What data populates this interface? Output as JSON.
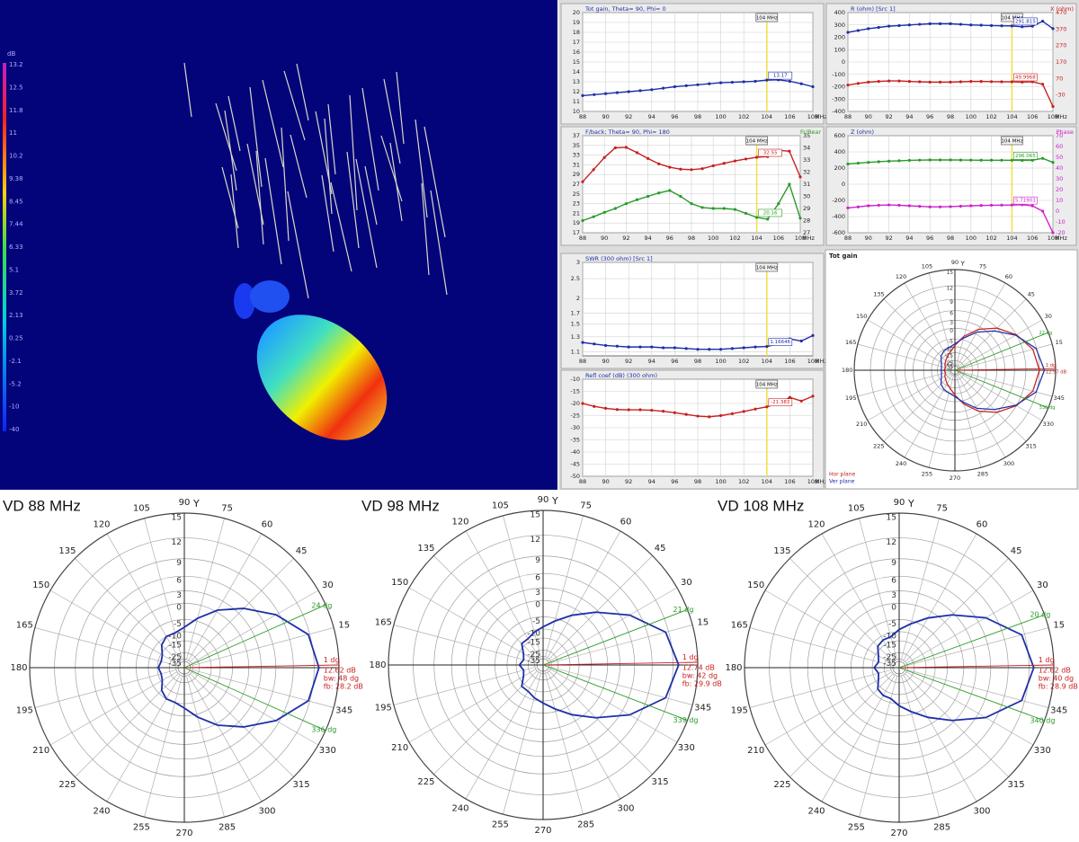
{
  "chart_data": [
    {
      "type": "colorbar",
      "unit": "dB",
      "ticks": [
        13.2,
        12.5,
        11.8,
        11,
        10.2,
        9.38,
        8.45,
        7.44,
        6.33,
        5.1,
        3.72,
        2.13,
        0.25,
        -2.1,
        -5.2,
        -10,
        -40
      ]
    },
    {
      "type": "line",
      "title": "Tot gain, Theta= 90, Phi= 0",
      "x": [
        88,
        89,
        90,
        91,
        92,
        93,
        94,
        95,
        96,
        97,
        98,
        99,
        100,
        101,
        102,
        103,
        104,
        105,
        106,
        107,
        108
      ],
      "xlim": [
        88,
        108
      ],
      "xticks": [
        88,
        90,
        92,
        94,
        96,
        98,
        100,
        102,
        104,
        106,
        108
      ],
      "x_unit": "MHz",
      "ylim": [
        10,
        20
      ],
      "yticks": [
        10,
        11,
        12,
        13,
        14,
        15,
        16,
        17,
        18,
        19,
        20
      ],
      "grid": true,
      "marker": {
        "x": 104,
        "label": "104 MHz"
      },
      "series": [
        {
          "color": "#1f2fa8",
          "marker_label": "13.17",
          "values": [
            11.6,
            11.7,
            11.8,
            11.9,
            12.0,
            12.1,
            12.2,
            12.35,
            12.5,
            12.6,
            12.7,
            12.8,
            12.9,
            12.95,
            13.0,
            13.05,
            13.17,
            13.2,
            13.05,
            12.8,
            12.5
          ]
        }
      ]
    },
    {
      "type": "line",
      "title": "R (ohm) [Src 1]",
      "y2_title": "X (ohm)",
      "x": [
        88,
        89,
        90,
        91,
        92,
        93,
        94,
        95,
        96,
        97,
        98,
        99,
        100,
        101,
        102,
        103,
        104,
        105,
        106,
        107,
        108
      ],
      "xlim": [
        88,
        108
      ],
      "xticks": [
        88,
        90,
        92,
        94,
        96,
        98,
        100,
        102,
        104,
        106,
        108
      ],
      "x_unit": "MHz",
      "ylim": [
        -400,
        400
      ],
      "yticks": [
        -400,
        -300,
        -200,
        -100,
        0,
        100,
        200,
        300,
        400
      ],
      "y2lim": [
        -130,
        470
      ],
      "y2ticks": [
        -30,
        70,
        170,
        270,
        370,
        470
      ],
      "grid": true,
      "marker": {
        "x": 104,
        "label": "104 MHz"
      },
      "series": [
        {
          "color": "#1f2fa8",
          "marker_label": "291.815",
          "values": [
            240,
            255,
            270,
            280,
            290,
            295,
            300,
            305,
            310,
            310,
            310,
            305,
            300,
            298,
            295,
            293,
            291.815,
            285,
            290,
            330,
            270
          ]
        },
        {
          "color": "#c82020",
          "axis": "y2",
          "marker_label": "49.9968",
          "values": [
            30,
            40,
            48,
            52,
            55,
            55,
            52,
            50,
            48,
            48,
            48,
            50,
            52,
            52,
            51,
            50,
            49.9968,
            48,
            50,
            35,
            -100
          ]
        }
      ]
    },
    {
      "type": "line",
      "title": "F/back; Theta= 90, Phi= 180",
      "y2_title": "Fr/Rear",
      "x": [
        88,
        89,
        90,
        91,
        92,
        93,
        94,
        95,
        96,
        97,
        98,
        99,
        100,
        101,
        102,
        103,
        104,
        105,
        106,
        107,
        108
      ],
      "xlim": [
        88,
        108
      ],
      "xticks": [
        88,
        90,
        92,
        94,
        96,
        98,
        100,
        102,
        104,
        106,
        108
      ],
      "x_unit": "MHz",
      "ylim": [
        17,
        37
      ],
      "yticks": [
        17,
        19,
        21,
        23,
        25,
        27,
        29,
        31,
        33,
        35,
        37
      ],
      "y2lim": [
        27,
        35
      ],
      "y2ticks": [
        27,
        28,
        29,
        30,
        31,
        32,
        33,
        34,
        35
      ],
      "grid": true,
      "marker": {
        "x": 104,
        "label": "104 MHz"
      },
      "series": [
        {
          "color": "#c82020",
          "marker_label": "32.55",
          "values": [
            27.5,
            30,
            32.5,
            34.5,
            34.6,
            33.5,
            32.3,
            31.2,
            30.5,
            30.1,
            30,
            30.2,
            30.8,
            31.3,
            31.8,
            32.2,
            32.55,
            32.7,
            34,
            33.8,
            28.5
          ]
        },
        {
          "color": "#2a9a2a",
          "marker_label": "20.16",
          "values": [
            19.5,
            20.3,
            21.2,
            22,
            23,
            23.8,
            24.5,
            25.2,
            25.7,
            24.5,
            23,
            22.2,
            22,
            22,
            21.8,
            21,
            20.16,
            19.8,
            23,
            27,
            20
          ]
        }
      ]
    },
    {
      "type": "line",
      "title": "Z (ohm)",
      "y2_title": "Phase",
      "x": [
        88,
        89,
        90,
        91,
        92,
        93,
        94,
        95,
        96,
        97,
        98,
        99,
        100,
        101,
        102,
        103,
        104,
        105,
        106,
        107,
        108
      ],
      "xlim": [
        88,
        108
      ],
      "xticks": [
        88,
        90,
        92,
        94,
        96,
        98,
        100,
        102,
        104,
        106,
        108
      ],
      "x_unit": "MHz",
      "ylim": [
        -600,
        600
      ],
      "yticks": [
        -600,
        -400,
        -200,
        0,
        200,
        400,
        600
      ],
      "y2lim": [
        -20,
        70
      ],
      "y2ticks": [
        -20,
        -10,
        0,
        10,
        20,
        30,
        40,
        50,
        60,
        70
      ],
      "grid": true,
      "marker": {
        "x": 104,
        "label": "104 MHz"
      },
      "series": [
        {
          "color": "#2a9a2a",
          "marker_label": "296.065",
          "values": [
            250,
            260,
            270,
            278,
            285,
            290,
            295,
            298,
            300,
            300,
            300,
            299,
            298,
            297,
            297,
            296.5,
            296.065,
            295,
            296,
            320,
            270
          ]
        },
        {
          "color": "#cc22cc",
          "axis": "y2",
          "marker_label": "5.71903",
          "values": [
            3,
            4,
            5,
            5.5,
            5.8,
            5.5,
            5,
            4.5,
            4,
            4,
            4.2,
            4.6,
            5,
            5.3,
            5.5,
            5.6,
            5.71903,
            6,
            5,
            0,
            -20
          ]
        }
      ]
    },
    {
      "type": "line",
      "title": "SWR (300 ohm) [Src 1]",
      "x": [
        88,
        89,
        90,
        91,
        92,
        93,
        94,
        95,
        96,
        97,
        98,
        99,
        100,
        101,
        102,
        103,
        104,
        105,
        106,
        107,
        108
      ],
      "xlim": [
        88,
        108
      ],
      "xticks": [
        88,
        90,
        92,
        94,
        96,
        98,
        100,
        102,
        104,
        106,
        108
      ],
      "x_unit": "MHz",
      "log_scale": true,
      "ylim": [
        1.05,
        3
      ],
      "yticks": [
        1.1,
        1.3,
        1.5,
        1.7,
        2,
        2.5,
        3
      ],
      "grid": true,
      "marker": {
        "x": 104,
        "label": "104 MHz"
      },
      "series": [
        {
          "color": "#1f2fa8",
          "marker_label": "1.16646",
          "values": [
            1.22,
            1.2,
            1.18,
            1.17,
            1.16,
            1.16,
            1.16,
            1.15,
            1.15,
            1.14,
            1.13,
            1.13,
            1.13,
            1.14,
            1.15,
            1.16,
            1.16646,
            1.2,
            1.27,
            1.24,
            1.32
          ]
        }
      ]
    },
    {
      "type": "line",
      "title": "Refl coef (dB) (300 ohm)",
      "x": [
        88,
        89,
        90,
        91,
        92,
        93,
        94,
        95,
        96,
        97,
        98,
        99,
        100,
        101,
        102,
        103,
        104,
        105,
        106,
        107,
        108
      ],
      "xlim": [
        88,
        108
      ],
      "xticks": [
        88,
        90,
        92,
        94,
        96,
        98,
        100,
        102,
        104,
        106,
        108
      ],
      "x_unit": "MHz",
      "ylim": [
        -50,
        -10
      ],
      "yticks": [
        -50,
        -45,
        -40,
        -35,
        -30,
        -25,
        -20,
        -15,
        -10
      ],
      "grid": true,
      "marker": {
        "x": 104,
        "label": "104 MHz"
      },
      "series": [
        {
          "color": "#c82020",
          "marker_label": "-21.383",
          "values": [
            -20,
            -21.2,
            -22,
            -22.5,
            -22.6,
            -22.6,
            -22.8,
            -23.2,
            -23.8,
            -24.5,
            -25.2,
            -25.5,
            -25,
            -24.2,
            -23.3,
            -22.3,
            -21.383,
            -20,
            -17.5,
            -19,
            -17
          ]
        }
      ]
    },
    {
      "type": "polar",
      "title": "Tot gain",
      "axis_label": "Y",
      "rlim": [
        -40,
        15
      ],
      "rticks": [
        15,
        12,
        9,
        6,
        3,
        0,
        -5,
        -10,
        -15,
        -25,
        -35
      ],
      "angle_ticks": [
        15,
        30,
        45,
        60,
        75,
        90,
        105,
        120,
        135,
        150,
        165,
        180,
        195,
        210,
        225,
        240,
        255,
        270,
        285,
        300,
        315,
        330,
        345
      ],
      "angles": [
        0,
        15,
        30,
        45,
        60,
        75,
        90,
        105,
        120,
        135,
        150,
        165,
        180,
        195,
        210,
        225,
        240,
        255,
        270,
        285,
        300,
        315,
        330,
        345
      ],
      "series": [
        {
          "name": "Hor plane",
          "color": "#c82020",
          "values": [
            12,
            11.2,
            9,
            6,
            2,
            -3,
            -9,
            -14,
            -17,
            -20,
            -22,
            -25,
            -23,
            -25,
            -22,
            -20,
            -17,
            -14,
            -9,
            -3,
            2,
            6,
            9,
            11.2
          ]
        },
        {
          "name": "Ver plane",
          "color": "#1f2fa8",
          "values": [
            12.97,
            11.9,
            8.8,
            4.8,
            0.8,
            -4,
            -8,
            -10,
            -11,
            -13,
            -17,
            -19,
            -19.4,
            -19,
            -17,
            -13,
            -11,
            -10,
            -8,
            -4,
            0.8,
            4.8,
            8.8,
            11.9
          ]
        }
      ],
      "markers": [
        {
          "angle": 1,
          "label": "1 dg",
          "color": "#c82020"
        },
        {
          "angle": 22,
          "label": "22 dg",
          "color": "#2a9a2a"
        },
        {
          "angle": 338,
          "label": "338 dg",
          "color": "#2a9a2a"
        }
      ],
      "annotations": [
        "12.97 dB"
      ]
    },
    {
      "type": "polar",
      "title": "VD 88 MHz",
      "axis_label": "Y",
      "rlim": [
        -40,
        15
      ],
      "rticks": [
        15,
        12,
        9,
        6,
        3,
        0,
        -5,
        -10,
        -15,
        -25,
        -35
      ],
      "angle_ticks": [
        15,
        30,
        45,
        60,
        75,
        90,
        105,
        120,
        135,
        150,
        165,
        180,
        195,
        210,
        225,
        240,
        255,
        270,
        285,
        300,
        315,
        330,
        345
      ],
      "angles": [
        0,
        15,
        30,
        45,
        60,
        75,
        90,
        105,
        120,
        135,
        150,
        165,
        180,
        195,
        210,
        225,
        240,
        255,
        270,
        285,
        300,
        315,
        330,
        345
      ],
      "color": "#1f2fa8",
      "values": [
        12.62,
        11.8,
        8.5,
        4.5,
        0.5,
        -4,
        -8,
        -10,
        -10,
        -12,
        -16,
        -17,
        -15.6,
        -17,
        -16,
        -12,
        -10,
        -10,
        -8,
        -4,
        0.5,
        4.5,
        8.5,
        11.8
      ],
      "markers": [
        {
          "angle": 1,
          "label": "1 dg",
          "color": "#c82020"
        },
        {
          "angle": 24,
          "label": "24 dg",
          "color": "#2a9a2a"
        },
        {
          "angle": 336,
          "label": "336 dg",
          "color": "#2a9a2a"
        }
      ],
      "annotations": [
        "12.62 dB",
        "bw: 48 dg",
        "fb: 28.2 dB"
      ]
    },
    {
      "type": "polar",
      "title": "VD 98 MHz",
      "axis_label": "Y",
      "rlim": [
        -40,
        15
      ],
      "rticks": [
        15,
        12,
        9,
        6,
        3,
        0,
        -5,
        -10,
        -15,
        -25,
        -35
      ],
      "angle_ticks": [
        15,
        30,
        45,
        60,
        75,
        90,
        105,
        120,
        135,
        150,
        165,
        180,
        195,
        210,
        225,
        240,
        255,
        270,
        285,
        300,
        315,
        330,
        345
      ],
      "angles": [
        0,
        15,
        30,
        45,
        60,
        75,
        90,
        105,
        120,
        135,
        150,
        165,
        180,
        195,
        210,
        225,
        240,
        255,
        270,
        285,
        300,
        315,
        330,
        345
      ],
      "color": "#1f2fa8",
      "values": [
        12.74,
        11.6,
        7.5,
        2.5,
        -2,
        -6,
        -9,
        -11,
        -13,
        -13,
        -18,
        -20,
        -17.2,
        -20,
        -18,
        -13,
        -13,
        -11,
        -9,
        -6,
        -2,
        2.5,
        7.5,
        11.6
      ],
      "markers": [
        {
          "angle": 1,
          "label": "1 dg",
          "color": "#c82020"
        },
        {
          "angle": 21,
          "label": "21 dg",
          "color": "#2a9a2a"
        },
        {
          "angle": 339,
          "label": "339 dg",
          "color": "#2a9a2a"
        }
      ],
      "annotations": [
        "12.74 dB",
        "bw: 42 dg",
        "fb: 29.9 dB"
      ]
    },
    {
      "type": "polar",
      "title": "VD 108 MHz",
      "axis_label": "Y",
      "rlim": [
        -40,
        15
      ],
      "rticks": [
        15,
        12,
        9,
        6,
        3,
        0,
        -5,
        -10,
        -15,
        -25,
        -35
      ],
      "angle_ticks": [
        15,
        30,
        45,
        60,
        75,
        90,
        105,
        120,
        135,
        150,
        165,
        180,
        195,
        210,
        225,
        240,
        255,
        270,
        285,
        300,
        315,
        330,
        345
      ],
      "angles": [
        0,
        15,
        30,
        45,
        60,
        75,
        90,
        105,
        120,
        135,
        150,
        165,
        180,
        195,
        210,
        225,
        240,
        255,
        270,
        285,
        300,
        315,
        330,
        345
      ],
      "color": "#1f2fa8",
      "values": [
        12.62,
        11.6,
        7.5,
        2.5,
        -2,
        -6,
        -9,
        -12,
        -12,
        -13,
        -17,
        -19,
        -16.3,
        -19,
        -17,
        -13,
        -12,
        -12,
        -9,
        -6,
        -2,
        2.5,
        7.5,
        11.6
      ],
      "markers": [
        {
          "angle": 1,
          "label": "1 dg",
          "color": "#c82020"
        },
        {
          "angle": 20,
          "label": "20 dg",
          "color": "#2a9a2a"
        },
        {
          "angle": 340,
          "label": "340 dg",
          "color": "#2a9a2a"
        }
      ],
      "annotations": [
        "12.62 dB",
        "bw: 40 dg",
        "fb: 28.9 dB"
      ]
    }
  ]
}
